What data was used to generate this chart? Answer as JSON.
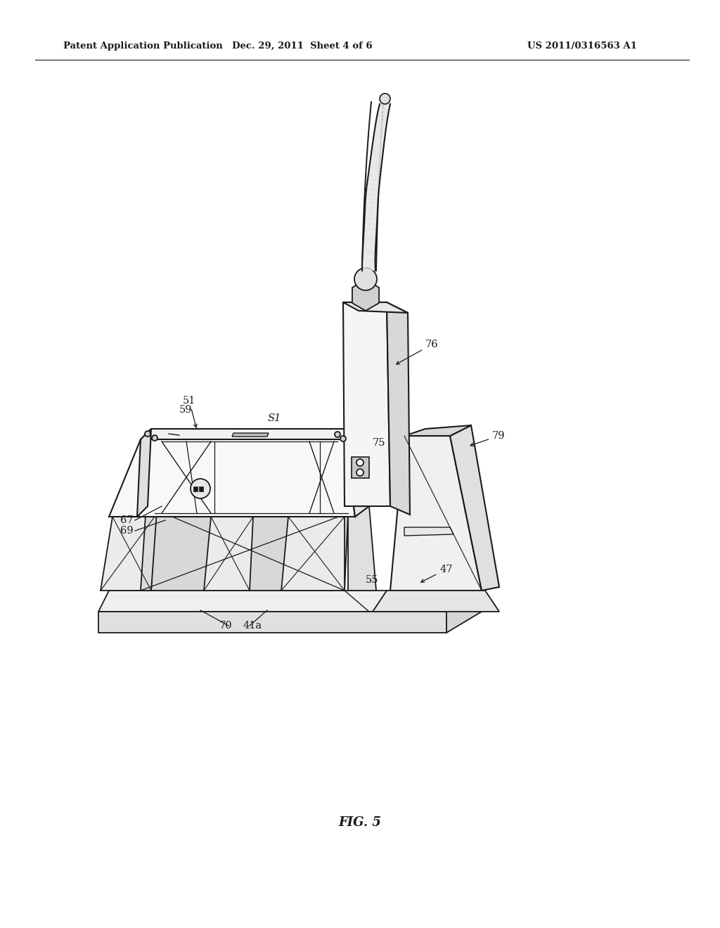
{
  "bg_color": "#ffffff",
  "line_color": "#1a1a1a",
  "header_left": "Patent Application Publication",
  "header_mid": "Dec. 29, 2011  Sheet 4 of 6",
  "header_right": "US 2011/0316563 A1",
  "fig_label": "FIG. 5",
  "page_width": 10.24,
  "page_height": 13.2,
  "dpi": 100
}
